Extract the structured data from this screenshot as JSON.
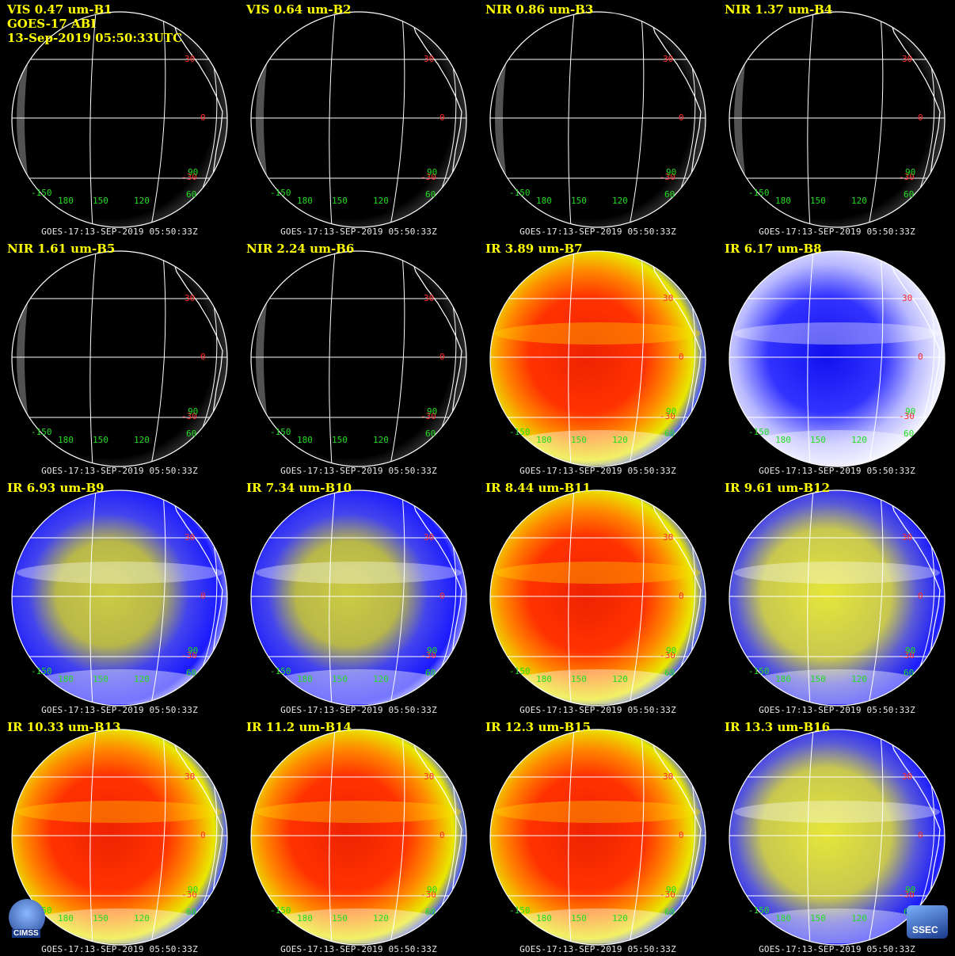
{
  "header": {
    "instrument": "GOES-17 ABI",
    "datetime": "13-Sep-2019 05:50:33UTC"
  },
  "footer_text": "GOES-17:13-SEP-2019 05:50:33Z",
  "lat_labels": [
    "30",
    "0",
    "-30"
  ],
  "lon_labels": [
    "-150",
    "180",
    "150",
    "120",
    "60",
    "90"
  ],
  "logos": {
    "left": "CIMSS",
    "right": "SSEC"
  },
  "panels": [
    {
      "title": "VIS 0.47 um-B1",
      "type": "vis"
    },
    {
      "title": "VIS 0.64 um-B2",
      "type": "vis"
    },
    {
      "title": "NIR 0.86 um-B3",
      "type": "vis"
    },
    {
      "title": "NIR 1.37 um-B4",
      "type": "vis"
    },
    {
      "title": "NIR 1.61 um-B5",
      "type": "vis"
    },
    {
      "title": "NIR 2.24 um-B6",
      "type": "vis"
    },
    {
      "title": "IR 3.89 um-B7",
      "type": "ir-warm"
    },
    {
      "title": "IR 6.17 um-B8",
      "type": "wv-light"
    },
    {
      "title": "IR 6.93 um-B9",
      "type": "wv"
    },
    {
      "title": "IR 7.34 um-B10",
      "type": "wv"
    },
    {
      "title": "IR 8.44 um-B11",
      "type": "ir-warm"
    },
    {
      "title": "IR 9.61 um-B12",
      "type": "wv-yellow"
    },
    {
      "title": "IR 10.33 um-B13",
      "type": "ir-warm"
    },
    {
      "title": "IR 11.2 um-B14",
      "type": "ir-warm"
    },
    {
      "title": "IR 12.3 um-B15",
      "type": "ir-warm"
    },
    {
      "title": "IR 13.3 um-B16",
      "type": "wv-yellow"
    }
  ],
  "colors": {
    "title": "#ffff00",
    "lat_label": "#ff2a2a",
    "lon_label": "#22dd22",
    "grid_line": "#ffffff",
    "ir_red": "#ee2200",
    "ir_orange": "#ff8800",
    "ir_yellow": "#e8e800",
    "wv_blue": "#1a1aff",
    "wv_yellow": "#cccc44"
  }
}
